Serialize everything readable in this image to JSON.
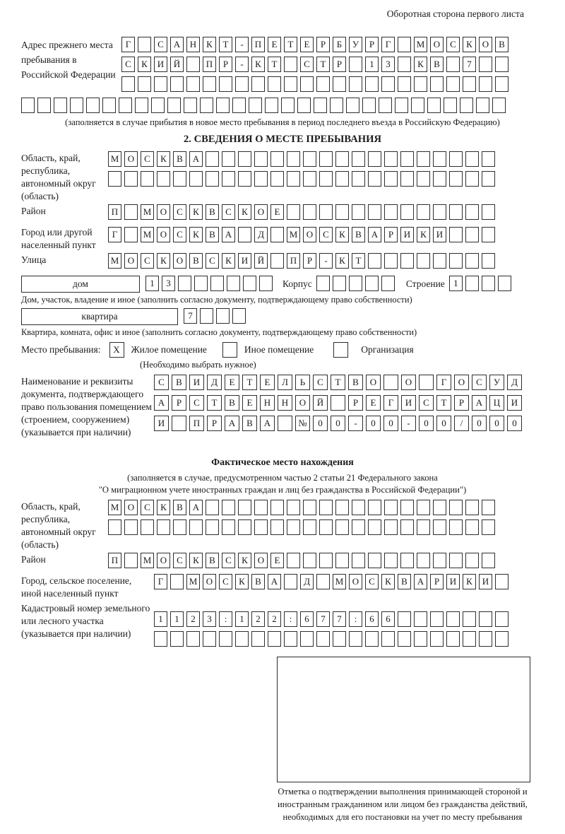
{
  "page": {
    "top_note": "Оборотная сторона первого листа"
  },
  "prev_address": {
    "label": "Адрес прежнего места пребывания в Российской Федерации",
    "rows": [
      "Г САНКТ-ПЕТЕРБУРГ МОСКОВ",
      "СКИЙ ПР-КТ СТР 13 КВ 7  ",
      "                        "
    ],
    "overflow_row": "                              ",
    "note": "(заполняется в случае прибытия в новое место пребывания в период последнего въезда в Российскую Федерацию)"
  },
  "section2": {
    "title": "2. СВЕДЕНИЯ О МЕСТЕ ПРЕБЫВАНИЯ",
    "oblast": {
      "label": "Область, край, республика, автономный округ (область)",
      "rows": [
        "МОСКВА                  ",
        "                        "
      ]
    },
    "raion": {
      "label": "Район",
      "row": "П МОСКВСКОЕ             "
    },
    "gorod": {
      "label": "Город или другой населенный пункт",
      "row": "Г МОСКВА Д МОСКВАРИКИ   "
    },
    "ulitsa": {
      "label": "Улица",
      "row": "МОСКОВСКИЙ ПР-КТ        "
    },
    "dom": {
      "box_label": "дом",
      "cells": "13      ",
      "korpus_label": "Корпус",
      "korpus_cells": "     ",
      "stroenie_label": "Строение",
      "stroenie_cells": "1   ",
      "caption": "Дом, участок, владение и иное (заполнить согласно документу, подтверждающему право собственности)"
    },
    "kvartira": {
      "box_label": "квартира",
      "cells": "7   ",
      "caption": "Квартира, комната, офис и иное (заполнить согласно документу, подтверждающему право собственности)"
    },
    "mesto": {
      "label": "Место пребывания:",
      "options": [
        {
          "label": "Жилое помещение",
          "checked": "X"
        },
        {
          "label": "Иное помещение",
          "checked": ""
        },
        {
          "label": "Организация",
          "checked": ""
        }
      ],
      "note": "(Необходимо выбрать нужное)"
    },
    "doc": {
      "label": "Наименование и реквизиты документа, подтверждающего право пользования помещением (строением, сооружением) (указывается при наличии)",
      "rows": [
        "СВИДЕТЕЛЬСТВО О ГОСУД",
        "АРСТВЕННОЙ РЕГИСТРАЦИ",
        "И ПРАВА №00-00-00/000"
      ]
    }
  },
  "fact": {
    "title": "Фактическое место нахождения",
    "note_line1": "(заполняется в случае, предусмотренном частью 2 статьи 21 Федерального закона",
    "note_line2": "\"О миграционном учете иностранных граждан и лиц без гражданства в Российской Федерации\")",
    "oblast": {
      "label": "Область, край, республика, автономный округ (область)",
      "rows": [
        "МОСКВА                  ",
        "                        "
      ]
    },
    "raion": {
      "label": "Район",
      "row": "П МОСКВСКОЕ             "
    },
    "gorod": {
      "label": "Город, сельское поселение, иной населенный пункт",
      "row": "Г МОСКВА Д МОСКВАРИКИ "
    },
    "kadastr": {
      "label": "Кадастровый номер земельного или лесного участка (указывается при наличии)",
      "rows": [
        "1123:122:677:66       ",
        "                      "
      ]
    }
  },
  "stamp": {
    "caption": "Отметка о подтверждении выполнения принимающей стороной и иностранным гражданином или лицом без гражданства действий, необходимых для его постановки на учет по месту пребывания"
  }
}
